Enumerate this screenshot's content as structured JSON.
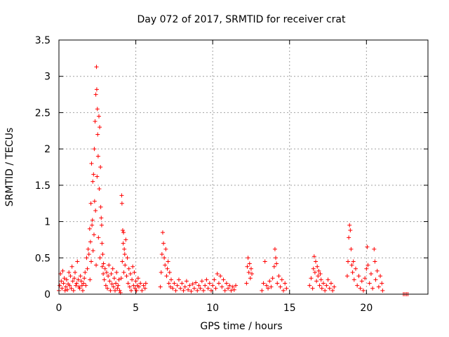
{
  "chart_data": {
    "type": "scatter",
    "title": "Day 072 of 2017, SRMTID for receiver crat",
    "xlabel": "GPS time / hours",
    "ylabel": "SRMTID / TECUs",
    "xlim": [
      0,
      24
    ],
    "ylim": [
      0,
      3.5
    ],
    "xticks": [
      0,
      5,
      10,
      15,
      20
    ],
    "xtick_labels": [
      "0",
      "5",
      "10",
      "15",
      "20"
    ],
    "yticks": [
      0,
      0.5,
      1,
      1.5,
      2,
      2.5,
      3,
      3.5
    ],
    "ytick_labels": [
      "0",
      "0.5",
      "1",
      "1.5",
      "2",
      "2.5",
      "3",
      "3.5"
    ],
    "grid": true,
    "marker": "+",
    "color": "#ff0000",
    "series": [
      {
        "name": "SRMTID",
        "points": [
          [
            0.0,
            0.05
          ],
          [
            0.05,
            0.12
          ],
          [
            0.1,
            0.28
          ],
          [
            0.15,
            0.18
          ],
          [
            0.2,
            0.08
          ],
          [
            0.25,
            0.32
          ],
          [
            0.3,
            0.15
          ],
          [
            0.35,
            0.22
          ],
          [
            0.4,
            0.05
          ],
          [
            0.45,
            0.1
          ],
          [
            0.5,
            0.2
          ],
          [
            0.55,
            0.06
          ],
          [
            0.6,
            0.14
          ],
          [
            0.65,
            0.3
          ],
          [
            0.7,
            0.12
          ],
          [
            0.75,
            0.25
          ],
          [
            0.8,
            0.08
          ],
          [
            0.85,
            0.38
          ],
          [
            0.9,
            0.18
          ],
          [
            0.95,
            0.05
          ],
          [
            1.0,
            0.22
          ],
          [
            1.05,
            0.3
          ],
          [
            1.1,
            0.12
          ],
          [
            1.15,
            0.15
          ],
          [
            1.2,
            0.45
          ],
          [
            1.25,
            0.2
          ],
          [
            1.3,
            0.1
          ],
          [
            1.35,
            0.08
          ],
          [
            1.4,
            0.25
          ],
          [
            1.45,
            0.18
          ],
          [
            1.5,
            0.12
          ],
          [
            1.55,
            0.05
          ],
          [
            1.6,
            0.15
          ],
          [
            1.65,
            0.22
          ],
          [
            1.7,
            0.3
          ],
          [
            1.75,
            0.12
          ],
          [
            1.8,
            0.5
          ],
          [
            1.85,
            0.35
          ],
          [
            1.9,
            0.62
          ],
          [
            1.95,
            0.55
          ],
          [
            2.0,
            0.9
          ],
          [
            2.02,
            0.2
          ],
          [
            2.05,
            0.72
          ],
          [
            2.08,
            1.25
          ],
          [
            2.1,
            0.45
          ],
          [
            2.12,
            1.8
          ],
          [
            2.15,
            0.95
          ],
          [
            2.18,
            1.02
          ],
          [
            2.2,
            1.55
          ],
          [
            2.22,
            0.6
          ],
          [
            2.25,
            1.65
          ],
          [
            2.28,
            0.82
          ],
          [
            2.3,
            2.0
          ],
          [
            2.32,
            1.28
          ],
          [
            2.35,
            2.38
          ],
          [
            2.38,
            1.15
          ],
          [
            2.4,
            2.75
          ],
          [
            2.42,
            0.4
          ],
          [
            2.44,
            3.13
          ],
          [
            2.46,
            2.82
          ],
          [
            2.48,
            1.62
          ],
          [
            2.5,
            2.55
          ],
          [
            2.52,
            2.2
          ],
          [
            2.55,
            1.9
          ],
          [
            2.57,
            0.78
          ],
          [
            2.6,
            2.45
          ],
          [
            2.62,
            1.45
          ],
          [
            2.65,
            2.3
          ],
          [
            2.67,
            0.5
          ],
          [
            2.7,
            1.75
          ],
          [
            2.72,
            1.2
          ],
          [
            2.75,
            1.05
          ],
          [
            2.78,
            0.95
          ],
          [
            2.8,
            0.7
          ],
          [
            2.82,
            0.38
          ],
          [
            2.85,
            0.55
          ],
          [
            2.88,
            0.28
          ],
          [
            2.9,
            0.42
          ],
          [
            2.95,
            0.2
          ],
          [
            3.0,
            0.35
          ],
          [
            3.05,
            0.12
          ],
          [
            3.1,
            0.3
          ],
          [
            3.15,
            0.08
          ],
          [
            3.2,
            0.25
          ],
          [
            3.25,
            0.4
          ],
          [
            3.3,
            0.18
          ],
          [
            3.35,
            0.05
          ],
          [
            3.4,
            0.28
          ],
          [
            3.45,
            0.14
          ],
          [
            3.5,
            0.35
          ],
          [
            3.55,
            0.1
          ],
          [
            3.6,
            0.22
          ],
          [
            3.65,
            0.05
          ],
          [
            3.7,
            0.15
          ],
          [
            3.75,
            0.3
          ],
          [
            3.8,
            0.08
          ],
          [
            3.85,
            0.12
          ],
          [
            3.9,
            0.2
          ],
          [
            3.95,
            0.05
          ],
          [
            4.0,
            0.02
          ],
          [
            4.05,
            0.22
          ],
          [
            4.08,
            1.36
          ],
          [
            4.1,
            1.25
          ],
          [
            4.12,
            0.45
          ],
          [
            4.15,
            0.88
          ],
          [
            4.18,
            0.7
          ],
          [
            4.2,
            0.85
          ],
          [
            4.22,
            0.3
          ],
          [
            4.25,
            0.62
          ],
          [
            4.28,
            0.55
          ],
          [
            4.3,
            0.4
          ],
          [
            4.35,
            0.75
          ],
          [
            4.4,
            0.25
          ],
          [
            4.45,
            0.5
          ],
          [
            4.5,
            0.15
          ],
          [
            4.55,
            0.35
          ],
          [
            4.6,
            0.1
          ],
          [
            4.65,
            0.28
          ],
          [
            4.7,
            0.05
          ],
          [
            4.75,
            0.2
          ],
          [
            4.8,
            0.38
          ],
          [
            4.85,
            0.12
          ],
          [
            4.9,
            0.3
          ],
          [
            4.95,
            0.08
          ],
          [
            5.0,
            0.18
          ],
          [
            5.05,
            0.05
          ],
          [
            5.1,
            0.12
          ],
          [
            5.15,
            0.22
          ],
          [
            5.2,
            0.1
          ],
          [
            5.3,
            0.15
          ],
          [
            5.4,
            0.05
          ],
          [
            5.5,
            0.12
          ],
          [
            5.6,
            0.08
          ],
          [
            5.65,
            0.15
          ],
          [
            6.6,
            0.1
          ],
          [
            6.65,
            0.3
          ],
          [
            6.7,
            0.55
          ],
          [
            6.75,
            0.85
          ],
          [
            6.8,
            0.7
          ],
          [
            6.85,
            0.5
          ],
          [
            6.9,
            0.4
          ],
          [
            6.95,
            0.62
          ],
          [
            7.0,
            0.25
          ],
          [
            7.05,
            0.35
          ],
          [
            7.1,
            0.45
          ],
          [
            7.15,
            0.15
          ],
          [
            7.2,
            0.3
          ],
          [
            7.25,
            0.1
          ],
          [
            7.3,
            0.2
          ],
          [
            7.4,
            0.08
          ],
          [
            7.5,
            0.15
          ],
          [
            7.6,
            0.05
          ],
          [
            7.7,
            0.12
          ],
          [
            7.8,
            0.2
          ],
          [
            7.9,
            0.08
          ],
          [
            8.0,
            0.15
          ],
          [
            8.1,
            0.05
          ],
          [
            8.2,
            0.1
          ],
          [
            8.3,
            0.18
          ],
          [
            8.4,
            0.06
          ],
          [
            8.5,
            0.12
          ],
          [
            8.6,
            0.04
          ],
          [
            8.7,
            0.14
          ],
          [
            8.8,
            0.08
          ],
          [
            8.9,
            0.16
          ],
          [
            9.0,
            0.05
          ],
          [
            9.1,
            0.12
          ],
          [
            9.2,
            0.08
          ],
          [
            9.3,
            0.18
          ],
          [
            9.4,
            0.05
          ],
          [
            9.5,
            0.12
          ],
          [
            9.6,
            0.2
          ],
          [
            9.7,
            0.08
          ],
          [
            9.8,
            0.15
          ],
          [
            9.9,
            0.05
          ],
          [
            10.0,
            0.12
          ],
          [
            10.1,
            0.2
          ],
          [
            10.2,
            0.08
          ],
          [
            10.3,
            0.28
          ],
          [
            10.4,
            0.15
          ],
          [
            10.5,
            0.25
          ],
          [
            10.6,
            0.1
          ],
          [
            10.7,
            0.2
          ],
          [
            10.8,
            0.05
          ],
          [
            10.9,
            0.15
          ],
          [
            11.0,
            0.08
          ],
          [
            11.1,
            0.12
          ],
          [
            11.2,
            0.05
          ],
          [
            11.3,
            0.1
          ],
          [
            11.4,
            0.06
          ],
          [
            11.5,
            0.12
          ],
          [
            12.2,
            0.15
          ],
          [
            12.25,
            0.38
          ],
          [
            12.3,
            0.5
          ],
          [
            12.35,
            0.3
          ],
          [
            12.4,
            0.42
          ],
          [
            12.45,
            0.22
          ],
          [
            12.5,
            0.35
          ],
          [
            12.55,
            0.28
          ],
          [
            13.2,
            0.05
          ],
          [
            13.3,
            0.15
          ],
          [
            13.4,
            0.45
          ],
          [
            13.5,
            0.12
          ],
          [
            13.6,
            0.08
          ],
          [
            13.7,
            0.18
          ],
          [
            13.8,
            0.1
          ],
          [
            13.9,
            0.22
          ],
          [
            14.0,
            0.38
          ],
          [
            14.05,
            0.62
          ],
          [
            14.1,
            0.5
          ],
          [
            14.15,
            0.42
          ],
          [
            14.2,
            0.15
          ],
          [
            14.3,
            0.25
          ],
          [
            14.4,
            0.1
          ],
          [
            14.5,
            0.2
          ],
          [
            14.6,
            0.05
          ],
          [
            14.7,
            0.15
          ],
          [
            14.8,
            0.08
          ],
          [
            16.3,
            0.12
          ],
          [
            16.4,
            0.22
          ],
          [
            16.5,
            0.08
          ],
          [
            16.55,
            0.35
          ],
          [
            16.6,
            0.52
          ],
          [
            16.65,
            0.3
          ],
          [
            16.7,
            0.45
          ],
          [
            16.75,
            0.18
          ],
          [
            16.8,
            0.38
          ],
          [
            16.85,
            0.25
          ],
          [
            16.9,
            0.32
          ],
          [
            16.95,
            0.12
          ],
          [
            17.0,
            0.28
          ],
          [
            17.05,
            0.2
          ],
          [
            17.1,
            0.08
          ],
          [
            17.2,
            0.15
          ],
          [
            17.3,
            0.05
          ],
          [
            17.4,
            0.12
          ],
          [
            17.5,
            0.2
          ],
          [
            17.6,
            0.08
          ],
          [
            17.7,
            0.15
          ],
          [
            17.8,
            0.05
          ],
          [
            17.9,
            0.1
          ],
          [
            18.75,
            0.25
          ],
          [
            18.8,
            0.45
          ],
          [
            18.85,
            0.78
          ],
          [
            18.9,
            0.95
          ],
          [
            18.95,
            0.88
          ],
          [
            19.0,
            0.62
          ],
          [
            19.05,
            0.4
          ],
          [
            19.1,
            0.3
          ],
          [
            19.15,
            0.45
          ],
          [
            19.2,
            0.2
          ],
          [
            19.3,
            0.35
          ],
          [
            19.4,
            0.12
          ],
          [
            19.5,
            0.25
          ],
          [
            19.6,
            0.08
          ],
          [
            19.7,
            0.18
          ],
          [
            19.8,
            0.05
          ],
          [
            19.9,
            0.22
          ],
          [
            20.0,
            0.35
          ],
          [
            20.05,
            0.65
          ],
          [
            20.1,
            0.4
          ],
          [
            20.2,
            0.15
          ],
          [
            20.3,
            0.28
          ],
          [
            20.4,
            0.08
          ],
          [
            20.5,
            0.62
          ],
          [
            20.55,
            0.45
          ],
          [
            20.6,
            0.2
          ],
          [
            20.7,
            0.32
          ],
          [
            20.8,
            0.1
          ],
          [
            20.9,
            0.25
          ],
          [
            21.0,
            0.15
          ],
          [
            21.05,
            0.05
          ],
          [
            22.4,
            0.0
          ],
          [
            22.5,
            0.0
          ],
          [
            22.6,
            0.0
          ],
          [
            22.7,
            0.0
          ]
        ]
      }
    ]
  }
}
